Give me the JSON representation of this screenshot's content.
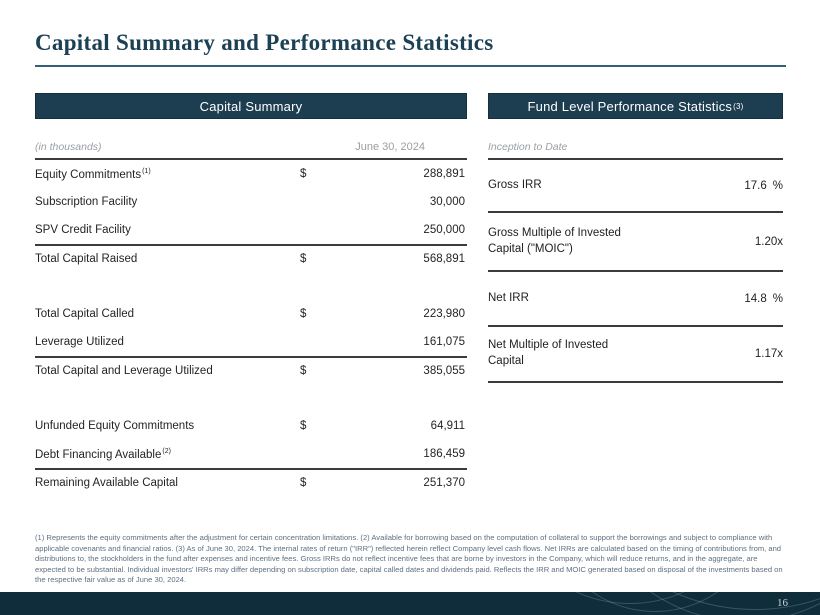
{
  "page": {
    "title": "Capital Summary and Performance Statistics",
    "page_number": "16",
    "colors": {
      "accent_navy": "#1d3d51",
      "footer_navy": "#102d3c",
      "title_navy": "#1c4054"
    }
  },
  "capital_summary": {
    "header": "Capital Summary",
    "units_note": "(in thousands)",
    "date_column": "June 30, 2024",
    "rows": [
      {
        "label": "Equity Commitments",
        "sup": "(1)",
        "currency": "$",
        "value": "288,891"
      },
      {
        "label": "Subscription Facility",
        "sup": "",
        "currency": "",
        "value": "30,000"
      },
      {
        "label": "SPV Credit Facility",
        "sup": "",
        "currency": "",
        "value": "250,000"
      },
      {
        "label": "Total Capital Raised",
        "sup": "",
        "currency": "$",
        "value": "568,891"
      },
      {
        "label": "Total Capital Called",
        "sup": "",
        "currency": "$",
        "value": "223,980"
      },
      {
        "label": "Leverage Utilized",
        "sup": "",
        "currency": "",
        "value": "161,075"
      },
      {
        "label": "Total Capital and Leverage Utilized",
        "sup": "",
        "currency": "$",
        "value": "385,055"
      },
      {
        "label": "Unfunded Equity Commitments",
        "sup": "",
        "currency": "$",
        "value": "64,911"
      },
      {
        "label": "Debt Financing Available",
        "sup": "(2)",
        "currency": "",
        "value": "186,459"
      },
      {
        "label": "Remaining Available Capital",
        "sup": "",
        "currency": "$",
        "value": "251,370"
      }
    ]
  },
  "performance_stats": {
    "header": "Fund Level Performance Statistics",
    "header_superscript": "(3)",
    "column_label": "Inception to Date",
    "rows": [
      {
        "label": "Gross IRR",
        "value": "17.6",
        "unit": "%"
      },
      {
        "label": "Gross Multiple of Invested Capital (\"MOIC\")",
        "value": "1.20x",
        "unit": ""
      },
      {
        "label": "Net IRR",
        "value": "14.8",
        "unit": "%"
      },
      {
        "label": "Net Multiple of Invested Capital",
        "value": "1.17x",
        "unit": ""
      }
    ]
  },
  "footnotes": "(1) Represents the equity commitments after the adjustment for certain concentration limitations. (2) Available for borrowing based on the computation of collateral to support the borrowings and subject to compliance with applicable covenants and financial ratios. (3) As of June 30, 2024. The internal rates of return (\"IRR\") reflected herein reflect Company level cash flows. Net IRRs are calculated based on the timing of contributions from, and distributions to, the stockholders in the fund after expenses and incentive fees. Gross IRRs do not reflect incentive fees that are borne by investors in the Company, which will reduce returns, and in the aggregate, are expected to be substantial. Individual investors' IRRs may differ depending on subscription date, capital called dates and dividends paid. Reflects the IRR and MOIC generated based on disposal of the investments based on the respective fair value as of June 30, 2024."
}
